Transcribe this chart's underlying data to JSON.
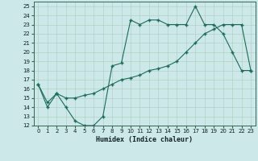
{
  "title": "",
  "xlabel": "Humidex (Indice chaleur)",
  "background_color": "#cce8e8",
  "line_color": "#1a6b5a",
  "xlim": [
    -0.5,
    23.5
  ],
  "ylim": [
    12,
    25.5
  ],
  "yticks": [
    12,
    13,
    14,
    15,
    16,
    17,
    18,
    19,
    20,
    21,
    22,
    23,
    24,
    25
  ],
  "xticks": [
    0,
    1,
    2,
    3,
    4,
    5,
    6,
    7,
    8,
    9,
    10,
    11,
    12,
    13,
    14,
    15,
    16,
    17,
    18,
    19,
    20,
    21,
    22,
    23
  ],
  "line1_x": [
    0,
    1,
    2,
    3,
    4,
    5,
    6,
    7,
    8,
    9,
    10,
    11,
    12,
    13,
    14,
    15,
    16,
    17,
    18,
    19,
    20,
    21,
    22,
    23
  ],
  "line1_y": [
    16.5,
    14.0,
    15.5,
    14.0,
    12.5,
    12.0,
    12.0,
    13.0,
    18.5,
    18.8,
    23.5,
    23.0,
    23.5,
    23.5,
    23.0,
    23.0,
    23.0,
    25.0,
    23.0,
    23.0,
    22.0,
    20.0,
    18.0,
    18.0
  ],
  "line2_x": [
    0,
    1,
    2,
    3,
    4,
    5,
    6,
    7,
    8,
    9,
    10,
    11,
    12,
    13,
    14,
    15,
    16,
    17,
    18,
    19,
    20,
    21,
    22,
    23
  ],
  "line2_y": [
    16.5,
    14.5,
    15.5,
    15.0,
    15.0,
    15.3,
    15.5,
    16.0,
    16.5,
    17.0,
    17.2,
    17.5,
    18.0,
    18.2,
    18.5,
    19.0,
    20.0,
    21.0,
    22.0,
    22.5,
    23.0,
    23.0,
    23.0,
    18.0
  ]
}
